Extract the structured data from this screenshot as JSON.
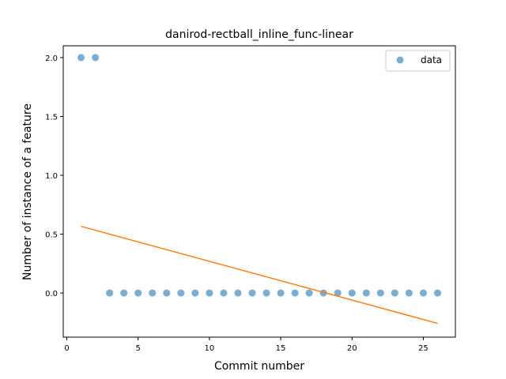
{
  "chart_data": {
    "type": "scatter",
    "title": "danirod-rectball_inline_func-linear",
    "xlabel": "Commit number",
    "ylabel": "Number of instance of a feature",
    "xlim": [
      -0.25,
      27.25
    ],
    "ylim": [
      -0.375,
      2.1
    ],
    "xticks": [
      0,
      5,
      10,
      15,
      20,
      25
    ],
    "xtick_labels": [
      "0",
      "5",
      "10",
      "15",
      "20",
      "25"
    ],
    "yticks": [
      0.0,
      0.5,
      1.0,
      1.5,
      2.0
    ],
    "ytick_labels": [
      "0.0",
      "0.5",
      "1.0",
      "1.5",
      "2.0"
    ],
    "grid": false,
    "legend_position": "top-right",
    "series": [
      {
        "name": "data",
        "kind": "scatter",
        "color": "#1f77b4",
        "x": [
          1,
          2,
          3,
          4,
          5,
          6,
          7,
          8,
          9,
          10,
          11,
          12,
          13,
          14,
          15,
          16,
          17,
          18,
          19,
          20,
          21,
          22,
          23,
          24,
          25,
          26
        ],
        "y": [
          2,
          2,
          0,
          0,
          0,
          0,
          0,
          0,
          0,
          0,
          0,
          0,
          0,
          0,
          0,
          0,
          0,
          0,
          0,
          0,
          0,
          0,
          0,
          0,
          0,
          0
        ]
      },
      {
        "kind": "line",
        "color": "#ff7f0e",
        "x": [
          1,
          26
        ],
        "y": [
          0.566,
          -0.258
        ]
      }
    ]
  }
}
